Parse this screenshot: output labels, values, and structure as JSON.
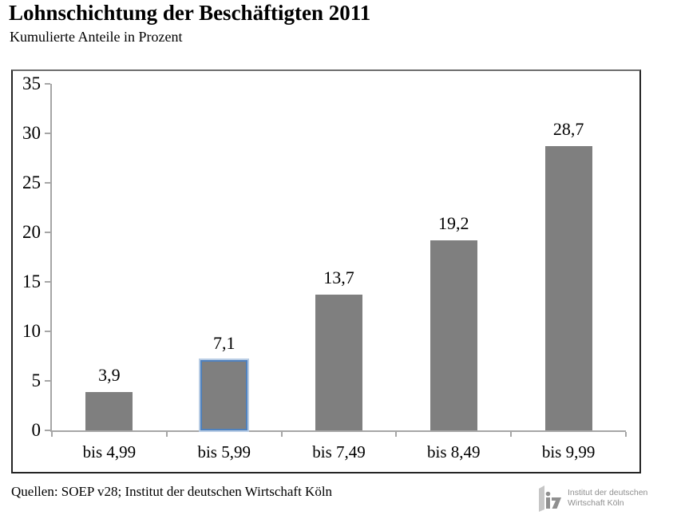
{
  "header": {
    "title": "Lohnschichtung der Beschäftigten 2011",
    "subtitle": "Kumulierte Anteile in Prozent"
  },
  "chart_data": {
    "type": "bar",
    "title": "Lohnschichtung der Beschäftigten 2011",
    "subtitle": "Kumulierte Anteile in Prozent",
    "categories": [
      "bis 4,99",
      "bis 5,99",
      "bis 7,49",
      "bis 8,49",
      "bis 9,99"
    ],
    "values": [
      3.9,
      7.1,
      13.7,
      19.2,
      28.7
    ],
    "value_labels": [
      "3,9",
      "7,1",
      "13,7",
      "19,2",
      "28,7"
    ],
    "ylim": [
      0,
      35
    ],
    "ytick_step": 5,
    "ytick_labels": [
      "0",
      "5",
      "10",
      "15",
      "20",
      "25",
      "30",
      "35"
    ],
    "grid": false,
    "legend": false,
    "highlighted_index": 1,
    "colors": {
      "bar_fill": "#7f7f7f",
      "highlight_border": "#4f81bd",
      "highlight_halo": "#b8cce4",
      "axis": "#a6a6a6",
      "text": "#000000"
    }
  },
  "footer": {
    "source": "Quellen: SOEP v28; Institut der deutschen Wirtschaft Köln",
    "logo_line1": "Institut der deutschen",
    "logo_line2": "Wirtschaft Köln"
  }
}
